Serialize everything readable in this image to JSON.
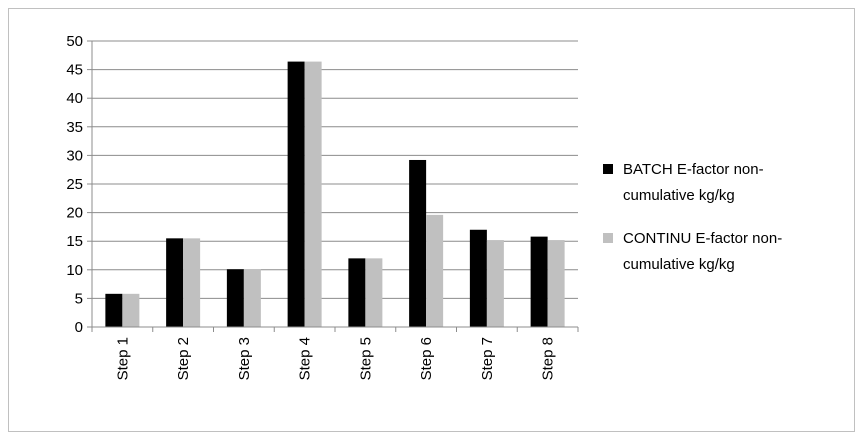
{
  "chart_data": {
    "type": "bar",
    "title": "",
    "xlabel": "",
    "ylabel": "",
    "ylim": [
      0,
      50
    ],
    "yticks": [
      0,
      5,
      10,
      15,
      20,
      25,
      30,
      35,
      40,
      45,
      50
    ],
    "grid": true,
    "legend_position": "right",
    "categories": [
      "Step 1",
      "Step 2",
      "Step 3",
      "Step 4",
      "Step 5",
      "Step 6",
      "Step 7",
      "Step 8"
    ],
    "series": [
      {
        "name": "BATCH E-factor non-cumulative kg/kg",
        "legend_lines": [
          "BATCH E-factor non-",
          "cumulative kg/kg"
        ],
        "color": "#000000",
        "values": [
          5.8,
          15.5,
          10.1,
          46.4,
          12.0,
          29.2,
          17.0,
          15.8
        ]
      },
      {
        "name": "CONTINU E-factor non-cumulative kg/kg",
        "legend_lines": [
          "CONTINU E-factor non-",
          "cumulative kg/kg"
        ],
        "color": "#c0c0c0",
        "values": [
          5.8,
          15.5,
          10.1,
          46.4,
          12.0,
          19.6,
          15.2,
          15.2
        ]
      }
    ]
  }
}
